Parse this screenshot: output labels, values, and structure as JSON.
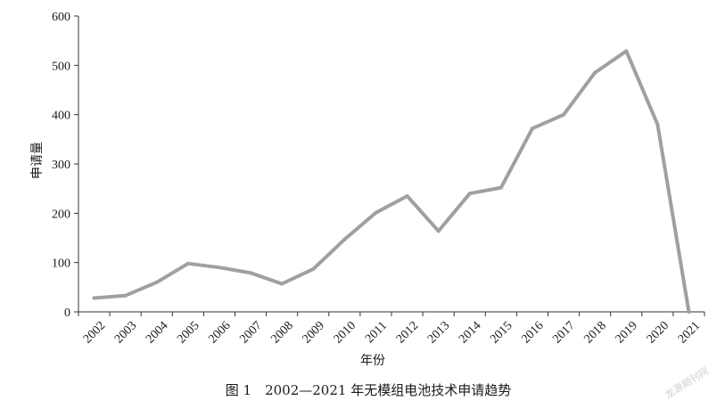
{
  "chart_data": {
    "type": "line",
    "x": [
      "2002",
      "2003",
      "2004",
      "2005",
      "2006",
      "2007",
      "2008",
      "2009",
      "2010",
      "2011",
      "2012",
      "2013",
      "2014",
      "2015",
      "2016",
      "2017",
      "2018",
      "2019",
      "2020",
      "2021"
    ],
    "series": [
      {
        "values": [
          28,
          33,
          60,
          98,
          90,
          79,
          57,
          87,
          147,
          201,
          235,
          164,
          240,
          252,
          372,
          400,
          485,
          529,
          380,
          0
        ],
        "color": "#a0a0a0"
      }
    ],
    "ylim": [
      0,
      600
    ],
    "yticks": [
      0,
      100,
      200,
      300,
      400,
      500,
      600
    ],
    "xlabel": "年份",
    "ylabel": "申请量",
    "grid": false,
    "legend": "none"
  },
  "caption": "图 1　2002—2021 年无模组电池技术申请趋势",
  "watermark": "龙源期刊网"
}
